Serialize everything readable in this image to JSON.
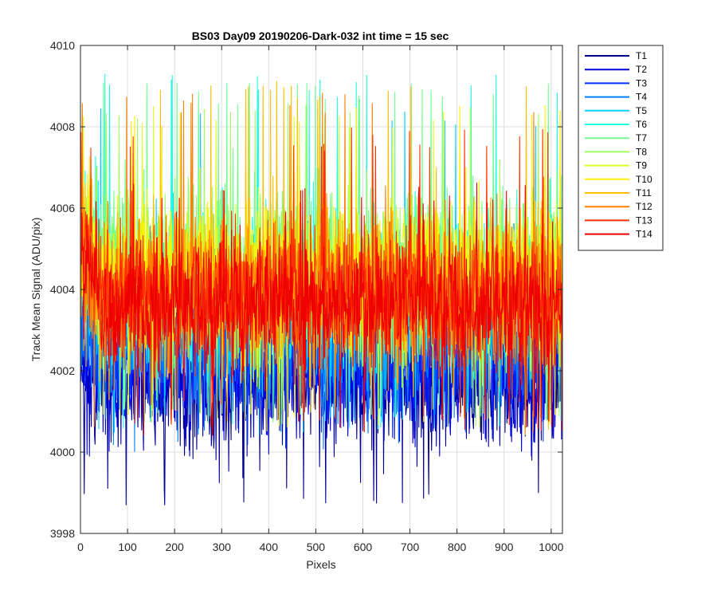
{
  "chart_data": {
    "type": "line",
    "title": "BS03 Day09 20190206-Dark-032 int time = 15 sec",
    "xlabel": "Pixels",
    "ylabel": "Track Mean Signal (ADU/pix)",
    "xlim": [
      0,
      1024
    ],
    "ylim": [
      3998,
      4010
    ],
    "xticks": [
      0,
      100,
      200,
      300,
      400,
      500,
      600,
      700,
      800,
      900,
      1000
    ],
    "yticks": [
      3998,
      4000,
      4002,
      4004,
      4006,
      4008,
      4010
    ],
    "grid": true,
    "legend_position": "outside-top-right",
    "x_sampling": {
      "start": 1,
      "end": 1024,
      "step": 1
    },
    "series": [
      {
        "name": "T1",
        "color": "#00008f",
        "mean": 4001.7,
        "noise_sd": 0.75,
        "min": 3998.7,
        "max": 4003.6,
        "edge_rise": 0.3
      },
      {
        "name": "T2",
        "color": "#0000df",
        "mean": 4001.9,
        "noise_sd": 0.75,
        "min": 3999.9,
        "max": 4004.6,
        "edge_rise": 0.5
      },
      {
        "name": "T3",
        "color": "#0030ff",
        "mean": 4002.4,
        "noise_sd": 0.75,
        "min": 4000.1,
        "max": 4005.0,
        "edge_rise": 0.6
      },
      {
        "name": "T4",
        "color": "#0080ff",
        "mean": 4002.9,
        "noise_sd": 0.8,
        "min": 4000.0,
        "max": 4005.8,
        "edge_rise": 0.8
      },
      {
        "name": "T5",
        "color": "#00cfff",
        "mean": 4003.5,
        "noise_sd": 0.85,
        "min": 4000.4,
        "max": 4008.6,
        "edge_rise": 1.0
      },
      {
        "name": "T6",
        "color": "#20ffdf",
        "mean": 4004.2,
        "noise_sd": 0.9,
        "min": 4000.5,
        "max": 4009.3,
        "edge_rise": 1.1
      },
      {
        "name": "T7",
        "color": "#70ff8f",
        "mean": 4004.5,
        "noise_sd": 0.9,
        "min": 4000.7,
        "max": 4009.1,
        "edge_rise": 1.1
      },
      {
        "name": "T8",
        "color": "#9fff60",
        "mean": 4004.4,
        "noise_sd": 0.9,
        "min": 4000.6,
        "max": 4008.8,
        "edge_rise": 1.1
      },
      {
        "name": "T9",
        "color": "#dfff20",
        "mean": 4004.3,
        "noise_sd": 0.9,
        "min": 4000.5,
        "max": 4008.5,
        "edge_rise": 1.1
      },
      {
        "name": "T10",
        "color": "#ffef00",
        "mean": 4004.2,
        "noise_sd": 0.9,
        "min": 4000.5,
        "max": 4008.6,
        "edge_rise": 1.2
      },
      {
        "name": "T11",
        "color": "#ffbf00",
        "mean": 4004.0,
        "noise_sd": 0.9,
        "min": 4000.4,
        "max": 4009.2,
        "edge_rise": 1.2
      },
      {
        "name": "T12",
        "color": "#ff7f00",
        "mean": 4003.9,
        "noise_sd": 0.9,
        "min": 4000.5,
        "max": 4008.9,
        "edge_rise": 1.3
      },
      {
        "name": "T13",
        "color": "#ff3000",
        "mean": 4003.8,
        "noise_sd": 0.85,
        "min": 4000.6,
        "max": 4008.0,
        "edge_rise": 1.3
      },
      {
        "name": "T14",
        "color": "#ef0000",
        "mean": 4003.6,
        "noise_sd": 0.75,
        "min": 4000.4,
        "max": 4006.7,
        "edge_rise": 1.3
      }
    ]
  }
}
